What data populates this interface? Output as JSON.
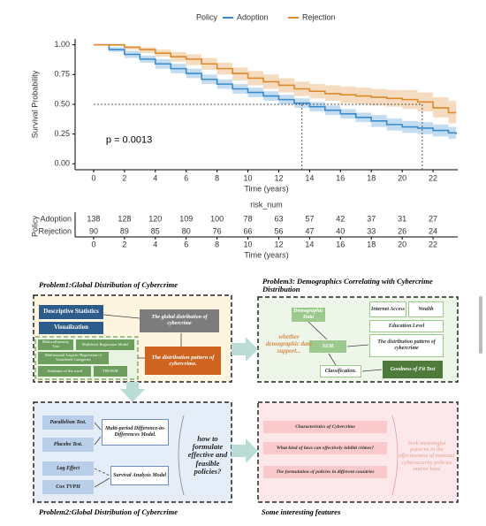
{
  "chart_data": {
    "type": "km",
    "legend_title": "Policy",
    "xlabel": "Time (years)",
    "ylabel": "Survival Probability",
    "annotation": "p = 0.0013",
    "xlim": [
      -1.2,
      23.6
    ],
    "ylim": [
      -0.05,
      1.05
    ],
    "xticks": [
      0,
      2,
      4,
      6,
      8,
      10,
      12,
      14,
      16,
      18,
      20,
      22
    ],
    "yticks": [
      {
        "value": 0,
        "label": "0.00"
      },
      {
        "value": 0.25,
        "label": "0.25"
      },
      {
        "value": 0.5,
        "label": "0.50"
      },
      {
        "value": 0.75,
        "label": "0.75"
      },
      {
        "value": 1,
        "label": "1.00"
      }
    ],
    "reference_line": 0.5,
    "series": [
      {
        "name": "Adoption",
        "color": "#3b8ccc",
        "median_time": 13.5,
        "x": [
          0,
          1,
          2,
          3,
          4,
          5,
          6,
          7,
          8,
          9,
          10,
          11,
          12,
          13,
          14,
          15,
          16,
          17,
          18,
          19,
          20,
          21,
          22,
          23,
          23.5
        ],
        "values": [
          1,
          0.96,
          0.92,
          0.88,
          0.84,
          0.8,
          0.76,
          0.71,
          0.67,
          0.63,
          0.6,
          0.57,
          0.54,
          0.51,
          0.48,
          0.45,
          0.42,
          0.39,
          0.36,
          0.33,
          0.31,
          0.3,
          0.28,
          0.26,
          0.25
        ],
        "upper": [
          1,
          0.98,
          0.95,
          0.91,
          0.88,
          0.84,
          0.8,
          0.75,
          0.71,
          0.67,
          0.64,
          0.61,
          0.58,
          0.55,
          0.52,
          0.49,
          0.46,
          0.43,
          0.41,
          0.38,
          0.36,
          0.35,
          0.33,
          0.31,
          0.3
        ],
        "lower": [
          1,
          0.94,
          0.89,
          0.85,
          0.8,
          0.76,
          0.72,
          0.67,
          0.63,
          0.59,
          0.56,
          0.53,
          0.5,
          0.47,
          0.44,
          0.41,
          0.38,
          0.35,
          0.31,
          0.28,
          0.26,
          0.25,
          0.23,
          0.21,
          0.2
        ]
      },
      {
        "name": "Rejection",
        "color": "#de8a2e",
        "median_time": 21.3,
        "x": [
          0,
          1,
          2,
          3,
          4,
          5,
          6,
          7,
          8,
          9,
          10,
          11,
          12,
          13,
          14,
          15,
          16,
          17,
          18,
          19,
          20,
          21,
          22,
          23,
          23.5
        ],
        "values": [
          1,
          1,
          0.98,
          0.96,
          0.93,
          0.9,
          0.88,
          0.84,
          0.8,
          0.76,
          0.72,
          0.69,
          0.66,
          0.63,
          0.61,
          0.59,
          0.58,
          0.57,
          0.56,
          0.55,
          0.54,
          0.52,
          0.47,
          0.43,
          0.43
        ],
        "upper": [
          1,
          1,
          0.99,
          0.98,
          0.96,
          0.94,
          0.92,
          0.89,
          0.85,
          0.81,
          0.78,
          0.75,
          0.72,
          0.69,
          0.67,
          0.66,
          0.65,
          0.64,
          0.63,
          0.62,
          0.62,
          0.6,
          0.56,
          0.53,
          0.53
        ],
        "lower": [
          1,
          0.99,
          0.96,
          0.93,
          0.9,
          0.86,
          0.83,
          0.79,
          0.75,
          0.7,
          0.66,
          0.63,
          0.6,
          0.57,
          0.55,
          0.53,
          0.51,
          0.5,
          0.49,
          0.48,
          0.46,
          0.44,
          0.39,
          0.34,
          0.34
        ]
      }
    ]
  },
  "risk_table": {
    "title": "risk_num",
    "ylabel": "Policy",
    "xlabel": "Time (years)",
    "x": [
      0,
      2,
      4,
      6,
      8,
      10,
      12,
      14,
      16,
      18,
      20,
      22
    ],
    "rows": [
      {
        "name": "Adoption",
        "values": [
          138,
          128,
          120,
          109,
          100,
          78,
          63,
          57,
          42,
          37,
          31,
          27
        ]
      },
      {
        "name": "Rejection",
        "values": [
          90,
          89,
          85,
          80,
          76,
          66,
          56,
          47,
          40,
          33,
          26,
          24
        ]
      }
    ]
  },
  "diagram": {
    "panels": [
      {
        "title": "Problem1:Global Distribution of Cybercrime",
        "nodes": [
          "Descriptive Statistics",
          "Visualization",
          "The global distribution of cybercrime",
          "Multicollinearity Test",
          "Multilevel Regression Model",
          "Multinomial Logistic Regression of Unordered Categories",
          "Attributes of the word",
          "TBOWM",
          "The distribution pattern of cybercrime."
        ]
      },
      {
        "title": "Problem3: Demographics Correlating with Cybercrime Distribution",
        "nodes": [
          "Demographic Data",
          "Internet Access",
          "Wealth",
          "Education Level",
          "The distribution pattern of cybercrime",
          "SEM",
          "Classification.",
          "Goodness of Fit Test"
        ],
        "note": "whether demographic data support..."
      },
      {
        "title": "Problem2:Global Distribution of Cybercrime",
        "nodes": [
          "Parallelism Test.",
          "Placebo Test.",
          "Multi-period Difference-in-Differences Model.",
          "Lag Effect",
          "Cox TVPH",
          "Survival Analysis Model"
        ],
        "note": "how to formulate effective and feasible policies?"
      },
      {
        "title": "Some interesting features",
        "nodes": [
          "Characteristics of Cybercrime",
          "What kind of laws can effectively inhibit crimes?",
          "The formulation of policies in different countries"
        ],
        "note": "Seek meaningful patterns in the effectiveness of national cybersecurity policies and/or laws"
      }
    ]
  }
}
